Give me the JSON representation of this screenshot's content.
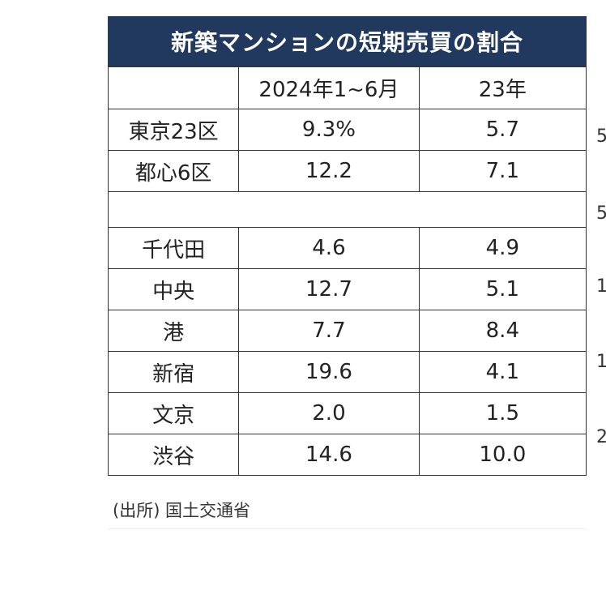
{
  "chart_data": {
    "type": "table",
    "title": "新築マンションの短期売買の割合",
    "columns": [
      "",
      "2024年1~6月",
      "23年"
    ],
    "rows": [
      {
        "label": "東京23区",
        "values": [
          "9.3%",
          "5.7"
        ]
      },
      {
        "label": "都心6区",
        "values": [
          "12.2",
          "7.1"
        ]
      },
      {
        "label": "",
        "values": [
          "",
          ""
        ]
      },
      {
        "label": "千代田",
        "values": [
          "4.6",
          "4.9"
        ]
      },
      {
        "label": "中央",
        "values": [
          "12.7",
          "5.1"
        ]
      },
      {
        "label": "港",
        "values": [
          "7.7",
          "8.4"
        ]
      },
      {
        "label": "新宿",
        "values": [
          "19.6",
          "4.1"
        ]
      },
      {
        "label": "文京",
        "values": [
          "2.0",
          "1.5"
        ]
      },
      {
        "label": "渋谷",
        "values": [
          "14.6",
          "10.0"
        ]
      }
    ],
    "source": "(出所) 国土交通省"
  },
  "edge_digits": [
    "5",
    "5",
    "1",
    "1",
    "2"
  ],
  "colors": {
    "title_bg": "#21395f",
    "title_text": "#ffffff",
    "border": "#333333",
    "text": "#222222"
  }
}
